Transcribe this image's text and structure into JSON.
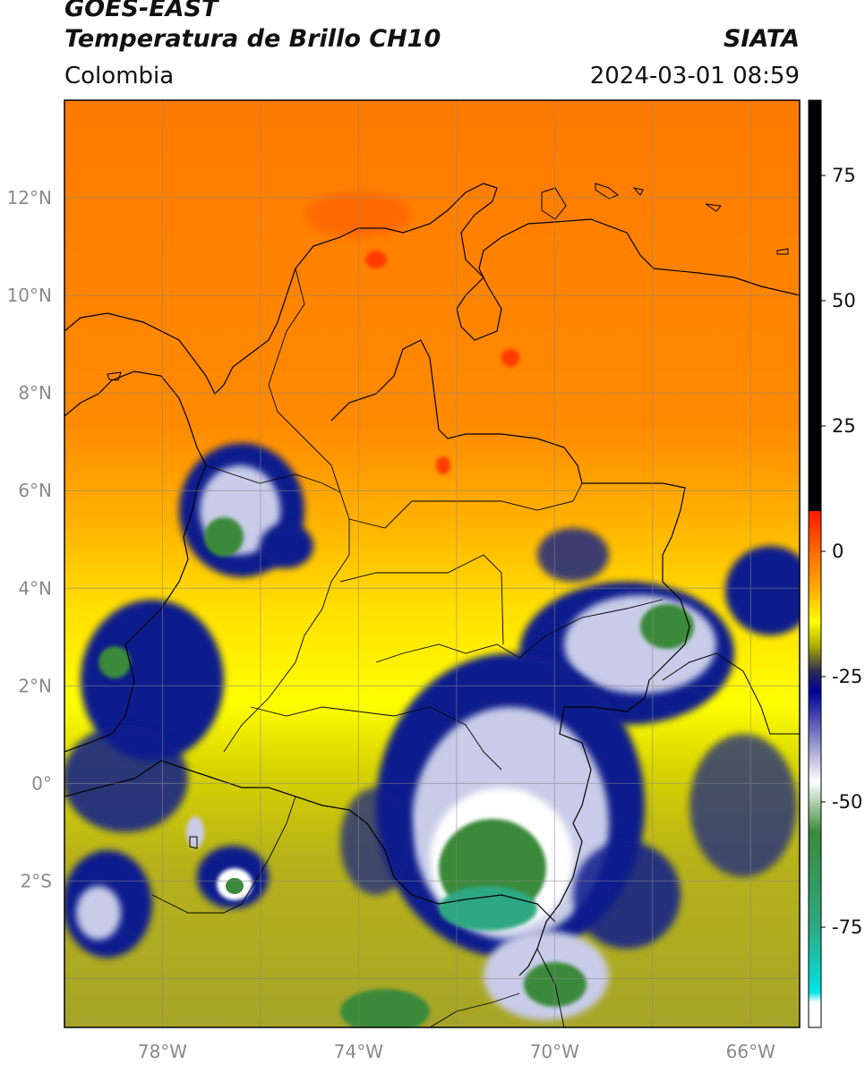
{
  "header": {
    "satellite": "GOES-EAST",
    "product": "Temperatura de Brillo CH10",
    "region": "Colombia",
    "organization": "SIATA",
    "datetime": "2024-03-01 08:59"
  },
  "map": {
    "lon_ticks": [
      {
        "value": -78,
        "label": "78°W"
      },
      {
        "value": -74,
        "label": "74°W"
      },
      {
        "value": -70,
        "label": "70°W"
      },
      {
        "value": -66,
        "label": "66°W"
      }
    ],
    "lat_ticks": [
      {
        "value": 12,
        "label": "12°N"
      },
      {
        "value": 10,
        "label": "10°N"
      },
      {
        "value": 8,
        "label": "8°N"
      },
      {
        "value": 6,
        "label": "6°N"
      },
      {
        "value": 4,
        "label": "4°N"
      },
      {
        "value": 2,
        "label": "2°N"
      },
      {
        "value": 0,
        "label": "0°"
      },
      {
        "value": -2,
        "label": "2°S"
      }
    ],
    "lon_range": [
      -80,
      -65
    ],
    "lat_range": [
      -5,
      14
    ],
    "grid": true
  },
  "colorbar": {
    "range": [
      -95,
      90
    ],
    "ticks": [
      {
        "value": 75,
        "label": "75"
      },
      {
        "value": 50,
        "label": "50"
      },
      {
        "value": 25,
        "label": "25"
      },
      {
        "value": 0,
        "label": "0"
      },
      {
        "value": -25,
        "label": "-25"
      },
      {
        "value": -50,
        "label": "-50"
      },
      {
        "value": -75,
        "label": "-75"
      }
    ],
    "stops": [
      {
        "value": 90,
        "color": "#000000"
      },
      {
        "value": 8,
        "color": "#000000"
      },
      {
        "value": 7.99,
        "color": "#ff1a00"
      },
      {
        "value": 0,
        "color": "#ff6a00"
      },
      {
        "value": -8,
        "color": "#ffb000"
      },
      {
        "value": -14,
        "color": "#ffff00"
      },
      {
        "value": -19,
        "color": "#aaaa00"
      },
      {
        "value": -24,
        "color": "#2a2a55"
      },
      {
        "value": -28,
        "color": "#000099"
      },
      {
        "value": -38,
        "color": "#9090c8"
      },
      {
        "value": -46,
        "color": "#ffffff"
      },
      {
        "value": -56,
        "color": "#3b8a3b"
      },
      {
        "value": -75,
        "color": "#2ea882"
      },
      {
        "value": -88,
        "color": "#00e5e5"
      },
      {
        "value": -90,
        "color": "#ffffff"
      },
      {
        "value": -95,
        "color": "#ffffff"
      }
    ]
  }
}
